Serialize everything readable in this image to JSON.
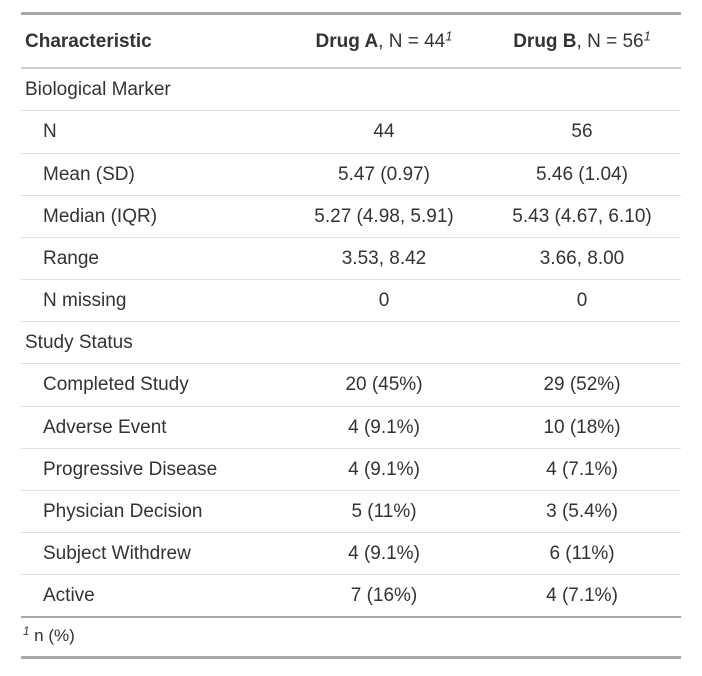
{
  "colors": {
    "background": "#FFFFFF",
    "text": "#333333",
    "border_heavy": "#A8A8A8",
    "border_medium": "#CCCCCC",
    "border_light": "#E0E0E0"
  },
  "table": {
    "header": {
      "characteristic": "Characteristic",
      "groups": [
        {
          "name": "Drug A",
          "suffix": ", N = 44",
          "footnote_mark": "1"
        },
        {
          "name": "Drug B",
          "suffix": ", N = 56",
          "footnote_mark": "1"
        }
      ]
    },
    "rows": [
      {
        "type": "group",
        "label": "Biological Marker",
        "drug_a": "",
        "drug_b": ""
      },
      {
        "type": "item",
        "label": "N",
        "drug_a": "44",
        "drug_b": "56"
      },
      {
        "type": "item",
        "label": "Mean (SD)",
        "drug_a": "5.47 (0.97)",
        "drug_b": "5.46 (1.04)"
      },
      {
        "type": "item",
        "label": "Median (IQR)",
        "drug_a": "5.27 (4.98, 5.91)",
        "drug_b": "5.43 (4.67, 6.10)"
      },
      {
        "type": "item",
        "label": "Range",
        "drug_a": "3.53, 8.42",
        "drug_b": "3.66, 8.00"
      },
      {
        "type": "item",
        "label": "N missing",
        "drug_a": "0",
        "drug_b": "0"
      },
      {
        "type": "group",
        "label": "Study Status",
        "drug_a": "",
        "drug_b": ""
      },
      {
        "type": "item",
        "label": "Completed Study",
        "drug_a": "20 (45%)",
        "drug_b": "29 (52%)"
      },
      {
        "type": "item",
        "label": "Adverse Event",
        "drug_a": "4 (9.1%)",
        "drug_b": "10 (18%)"
      },
      {
        "type": "item",
        "label": "Progressive Disease",
        "drug_a": "4 (9.1%)",
        "drug_b": "4 (7.1%)"
      },
      {
        "type": "item",
        "label": "Physician Decision",
        "drug_a": "5 (11%)",
        "drug_b": "3 (5.4%)"
      },
      {
        "type": "item",
        "label": "Subject Withdrew",
        "drug_a": "4 (9.1%)",
        "drug_b": "6 (11%)"
      },
      {
        "type": "item",
        "label": "Active",
        "drug_a": "7 (16%)",
        "drug_b": "4 (7.1%)"
      }
    ],
    "footnote": {
      "mark": "1",
      "text": "n (%)"
    }
  },
  "chart_data": {
    "type": "table",
    "title": "",
    "columns": [
      "Characteristic",
      "Drug A, N = 44",
      "Drug B, N = 56"
    ],
    "row_groups": [
      {
        "group": "Biological Marker",
        "rows": [
          [
            "N",
            "44",
            "56"
          ],
          [
            "Mean (SD)",
            "5.47 (0.97)",
            "5.46 (1.04)"
          ],
          [
            "Median (IQR)",
            "5.27 (4.98, 5.91)",
            "5.43 (4.67, 6.10)"
          ],
          [
            "Range",
            "3.53, 8.42",
            "3.66, 8.00"
          ],
          [
            "N missing",
            "0",
            "0"
          ]
        ]
      },
      {
        "group": "Study Status",
        "rows": [
          [
            "Completed Study",
            "20 (45%)",
            "29 (52%)"
          ],
          [
            "Adverse Event",
            "4 (9.1%)",
            "10 (18%)"
          ],
          [
            "Progressive Disease",
            "4 (9.1%)",
            "4 (7.1%)"
          ],
          [
            "Physician Decision",
            "5 (11%)",
            "3 (5.4%)"
          ],
          [
            "Subject Withdrew",
            "4 (9.1%)",
            "6 (11%)"
          ],
          [
            "Active",
            "7 (16%)",
            "4 (7.1%)"
          ]
        ]
      }
    ],
    "footnotes": [
      "1: n (%)"
    ]
  }
}
